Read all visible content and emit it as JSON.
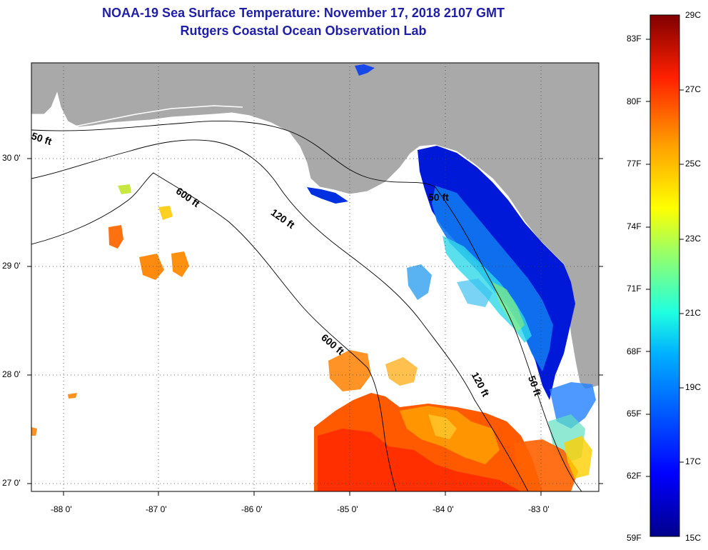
{
  "title_line1": "NOAA-19 Sea Surface Temperature:  November 17, 2018 2107 GMT",
  "title_line2": "Rutgers Coastal Ocean Observation Lab",
  "lat_ticks": [
    "30 0'",
    "29 0'",
    "28 0'",
    "27 0'"
  ],
  "lon_ticks": [
    "-88 0'",
    "-87 0'",
    "-86 0'",
    "-85 0'",
    "-84 0'",
    "-83 0'"
  ],
  "contour_labels": [
    "50 ft",
    "600 ft",
    "120 ft",
    "600 ft",
    "50 ft",
    "120 ft",
    "50 ft"
  ],
  "colorbar": {
    "fahrenheit_labels": [
      "83F",
      "80F",
      "77F",
      "74F",
      "71F",
      "68F",
      "65F",
      "62F",
      "59F"
    ],
    "celsius_labels": [
      "29C",
      "27C",
      "25C",
      "23C",
      "21C",
      "19C",
      "17C",
      "15C"
    ],
    "min_c": 15,
    "max_c": 29
  },
  "colors": {
    "land": "#a9a9a9",
    "title": "#1e1ea8"
  }
}
